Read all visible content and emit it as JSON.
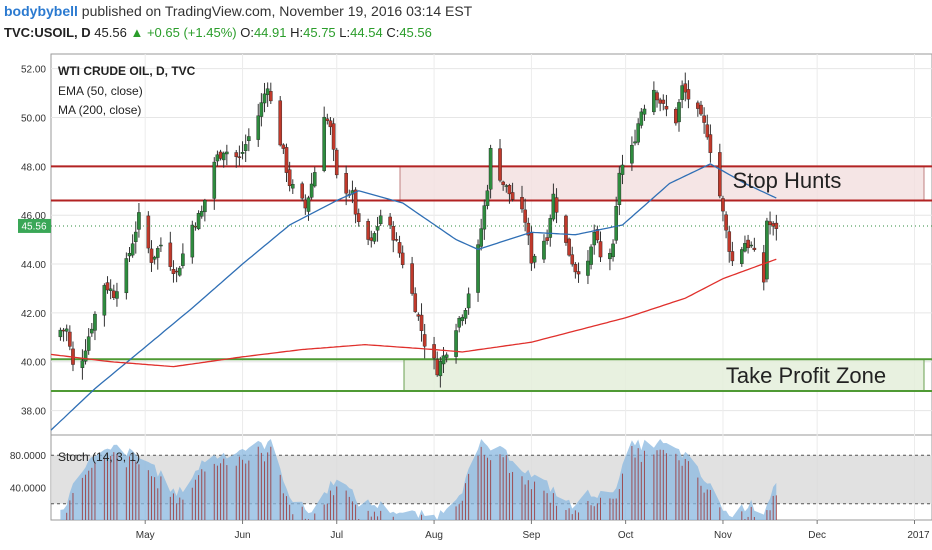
{
  "header": {
    "author": "bodybybell",
    "published_text": "published on TradingView.com, November 19, 2016 03:14 EST",
    "symbol": "TVC:USOIL, D",
    "last": "45.56",
    "change": "+0.65 (+1.45%)",
    "o_label": "O:",
    "o_value": "44.91",
    "h_label": "H:",
    "h_value": "45.75",
    "l_label": "L:",
    "l_value": "44.54",
    "c_label": "C:",
    "c_value": "45.56"
  },
  "colors": {
    "up": "#2e8b3e",
    "down": "#c0392b",
    "ema": "#2f6fb5",
    "ma": "#e0302c",
    "resistance": "#b22222",
    "support": "#4f9a34",
    "stoch": "#8ab8e0"
  },
  "chart_data": {
    "type": "candlestick",
    "legend": [
      "WTI CRUDE OIL, D, TVC",
      "EMA (50, close)",
      "MA (200, close)"
    ],
    "ylim": [
      37.0,
      52.6
    ],
    "y_ticks": [
      "52.00",
      "50.00",
      "48.00",
      "46.00",
      "44.00",
      "42.00",
      "40.00",
      "38.00"
    ],
    "x_ticks": [
      "May",
      "Jun",
      "Jul",
      "Aug",
      "Sep",
      "Oct",
      "Nov",
      "Dec",
      "2017"
    ],
    "last_price_label": "45.56",
    "annotations": {
      "stop_hunts": {
        "label": "Stop Hunts",
        "low": 46.6,
        "high": 48.0
      },
      "take_profit": {
        "label": "Take Profit Zone",
        "low": 38.8,
        "high": 40.1
      }
    },
    "close_anchors": [
      {
        "d": "2016-04-06",
        "v": 41.3
      },
      {
        "d": "2016-04-08",
        "v": 39.8
      },
      {
        "d": "2016-04-11",
        "v": 40.2
      },
      {
        "d": "2016-04-14",
        "v": 41.5
      },
      {
        "d": "2016-04-18",
        "v": 43.2
      },
      {
        "d": "2016-04-21",
        "v": 42.8
      },
      {
        "d": "2016-04-25",
        "v": 44.0
      },
      {
        "d": "2016-04-29",
        "v": 45.9
      },
      {
        "d": "2016-05-03",
        "v": 44.2
      },
      {
        "d": "2016-05-06",
        "v": 44.8
      },
      {
        "d": "2016-05-11",
        "v": 43.6
      },
      {
        "d": "2016-05-16",
        "v": 45.6
      },
      {
        "d": "2016-05-19",
        "v": 46.1
      },
      {
        "d": "2016-05-23",
        "v": 48.2
      },
      {
        "d": "2016-05-26",
        "v": 48.7
      },
      {
        "d": "2016-05-31",
        "v": 48.3
      },
      {
        "d": "2016-06-03",
        "v": 49.2
      },
      {
        "d": "2016-06-06",
        "v": 50.1
      },
      {
        "d": "2016-06-09",
        "v": 51.4
      },
      {
        "d": "2016-06-10",
        "v": 50.6
      },
      {
        "d": "2016-06-14",
        "v": 48.5
      },
      {
        "d": "2016-06-16",
        "v": 47.3
      },
      {
        "d": "2016-06-21",
        "v": 46.3
      },
      {
        "d": "2016-06-24",
        "v": 47.8
      },
      {
        "d": "2016-06-27",
        "v": 50.2
      },
      {
        "d": "2016-06-29",
        "v": 49.5
      },
      {
        "d": "2016-07-01",
        "v": 47.5
      },
      {
        "d": "2016-07-06",
        "v": 46.8
      },
      {
        "d": "2016-07-08",
        "v": 45.5
      },
      {
        "d": "2016-07-12",
        "v": 44.8
      },
      {
        "d": "2016-07-15",
        "v": 46.0
      },
      {
        "d": "2016-07-19",
        "v": 45.2
      },
      {
        "d": "2016-07-22",
        "v": 44.1
      },
      {
        "d": "2016-07-26",
        "v": 42.3
      },
      {
        "d": "2016-07-29",
        "v": 40.8
      },
      {
        "d": "2016-08-02",
        "v": 39.7
      },
      {
        "d": "2016-08-04",
        "v": 40.2
      },
      {
        "d": "2016-08-08",
        "v": 41.5
      },
      {
        "d": "2016-08-11",
        "v": 42.3
      },
      {
        "d": "2016-08-15",
        "v": 44.6
      },
      {
        "d": "2016-08-18",
        "v": 47.2
      },
      {
        "d": "2016-08-19",
        "v": 48.6
      },
      {
        "d": "2016-08-23",
        "v": 47.3
      },
      {
        "d": "2016-08-25",
        "v": 46.9
      },
      {
        "d": "2016-08-30",
        "v": 45.8
      },
      {
        "d": "2016-09-01",
        "v": 44.2
      },
      {
        "d": "2016-09-06",
        "v": 45.2
      },
      {
        "d": "2016-09-08",
        "v": 46.8
      },
      {
        "d": "2016-09-12",
        "v": 44.8
      },
      {
        "d": "2016-09-15",
        "v": 43.8
      },
      {
        "d": "2016-09-19",
        "v": 43.9
      },
      {
        "d": "2016-09-21",
        "v": 45.3
      },
      {
        "d": "2016-09-23",
        "v": 44.2
      },
      {
        "d": "2016-09-27",
        "v": 44.6
      },
      {
        "d": "2016-09-29",
        "v": 47.8
      },
      {
        "d": "2016-10-03",
        "v": 48.7
      },
      {
        "d": "2016-10-06",
        "v": 50.3
      },
      {
        "d": "2016-10-10",
        "v": 51.2
      },
      {
        "d": "2016-10-13",
        "v": 50.4
      },
      {
        "d": "2016-10-17",
        "v": 49.9
      },
      {
        "d": "2016-10-19",
        "v": 51.2
      },
      {
        "d": "2016-10-21",
        "v": 50.8
      },
      {
        "d": "2016-10-25",
        "v": 49.9
      },
      {
        "d": "2016-10-27",
        "v": 49.4
      },
      {
        "d": "2016-10-31",
        "v": 46.8
      },
      {
        "d": "2016-11-02",
        "v": 45.3
      },
      {
        "d": "2016-11-04",
        "v": 44.1
      },
      {
        "d": "2016-11-08",
        "v": 44.9
      },
      {
        "d": "2016-11-10",
        "v": 44.7
      },
      {
        "d": "2016-11-14",
        "v": 43.3
      },
      {
        "d": "2016-11-15",
        "v": 45.8
      },
      {
        "d": "2016-11-16",
        "v": 45.6
      },
      {
        "d": "2016-11-17",
        "v": 45.4
      },
      {
        "d": "2016-11-18",
        "v": 45.56
      }
    ],
    "ema_anchors": [
      {
        "d": "2016-04-01",
        "v": 37.2
      },
      {
        "d": "2016-04-15",
        "v": 38.9
      },
      {
        "d": "2016-05-01",
        "v": 40.6
      },
      {
        "d": "2016-05-16",
        "v": 42.2
      },
      {
        "d": "2016-06-01",
        "v": 44.0
      },
      {
        "d": "2016-06-16",
        "v": 45.6
      },
      {
        "d": "2016-07-01",
        "v": 46.6
      },
      {
        "d": "2016-07-08",
        "v": 47.0
      },
      {
        "d": "2016-07-22",
        "v": 46.5
      },
      {
        "d": "2016-08-08",
        "v": 45.0
      },
      {
        "d": "2016-08-15",
        "v": 44.6
      },
      {
        "d": "2016-09-01",
        "v": 45.3
      },
      {
        "d": "2016-09-15",
        "v": 45.2
      },
      {
        "d": "2016-09-30",
        "v": 45.6
      },
      {
        "d": "2016-10-15",
        "v": 47.3
      },
      {
        "d": "2016-10-28",
        "v": 48.1
      },
      {
        "d": "2016-11-08",
        "v": 47.3
      },
      {
        "d": "2016-11-18",
        "v": 46.7
      }
    ],
    "ma_anchors": [
      {
        "d": "2016-04-01",
        "v": 40.3
      },
      {
        "d": "2016-04-20",
        "v": 40.0
      },
      {
        "d": "2016-05-10",
        "v": 39.8
      },
      {
        "d": "2016-06-01",
        "v": 40.2
      },
      {
        "d": "2016-06-20",
        "v": 40.5
      },
      {
        "d": "2016-07-10",
        "v": 40.7
      },
      {
        "d": "2016-08-01",
        "v": 40.5
      },
      {
        "d": "2016-08-10",
        "v": 40.4
      },
      {
        "d": "2016-09-01",
        "v": 40.8
      },
      {
        "d": "2016-10-01",
        "v": 41.8
      },
      {
        "d": "2016-10-20",
        "v": 42.6
      },
      {
        "d": "2016-11-01",
        "v": 43.4
      },
      {
        "d": "2016-11-18",
        "v": 44.2
      }
    ],
    "stochastic": {
      "label": "Stoch (14, 3, 1)",
      "ylim": [
        0,
        105
      ],
      "y_ticks": [
        "80.0000",
        "40.0000"
      ],
      "band": [
        20,
        80
      ],
      "anchors": [
        {
          "d": "2016-04-04",
          "v": 10
        },
        {
          "d": "2016-04-12",
          "v": 70
        },
        {
          "d": "2016-04-22",
          "v": 90
        },
        {
          "d": "2016-05-03",
          "v": 70
        },
        {
          "d": "2016-05-11",
          "v": 30
        },
        {
          "d": "2016-05-20",
          "v": 75
        },
        {
          "d": "2016-06-01",
          "v": 88
        },
        {
          "d": "2016-06-10",
          "v": 95
        },
        {
          "d": "2016-06-17",
          "v": 22
        },
        {
          "d": "2016-06-23",
          "v": 10
        },
        {
          "d": "2016-07-01",
          "v": 55
        },
        {
          "d": "2016-07-08",
          "v": 22
        },
        {
          "d": "2016-07-15",
          "v": 18
        },
        {
          "d": "2016-07-22",
          "v": 8
        },
        {
          "d": "2016-08-02",
          "v": 4
        },
        {
          "d": "2016-08-10",
          "v": 40
        },
        {
          "d": "2016-08-16",
          "v": 94
        },
        {
          "d": "2016-08-25",
          "v": 80
        },
        {
          "d": "2016-09-01",
          "v": 55
        },
        {
          "d": "2016-09-08",
          "v": 38
        },
        {
          "d": "2016-09-14",
          "v": 16
        },
        {
          "d": "2016-09-20",
          "v": 35
        },
        {
          "d": "2016-09-26",
          "v": 28
        },
        {
          "d": "2016-10-03",
          "v": 92
        },
        {
          "d": "2016-10-12",
          "v": 95
        },
        {
          "d": "2016-10-20",
          "v": 80
        },
        {
          "d": "2016-10-28",
          "v": 40
        },
        {
          "d": "2016-11-03",
          "v": 4
        },
        {
          "d": "2016-11-09",
          "v": 20
        },
        {
          "d": "2016-11-14",
          "v": 12
        },
        {
          "d": "2016-11-18",
          "v": 50
        }
      ]
    }
  }
}
